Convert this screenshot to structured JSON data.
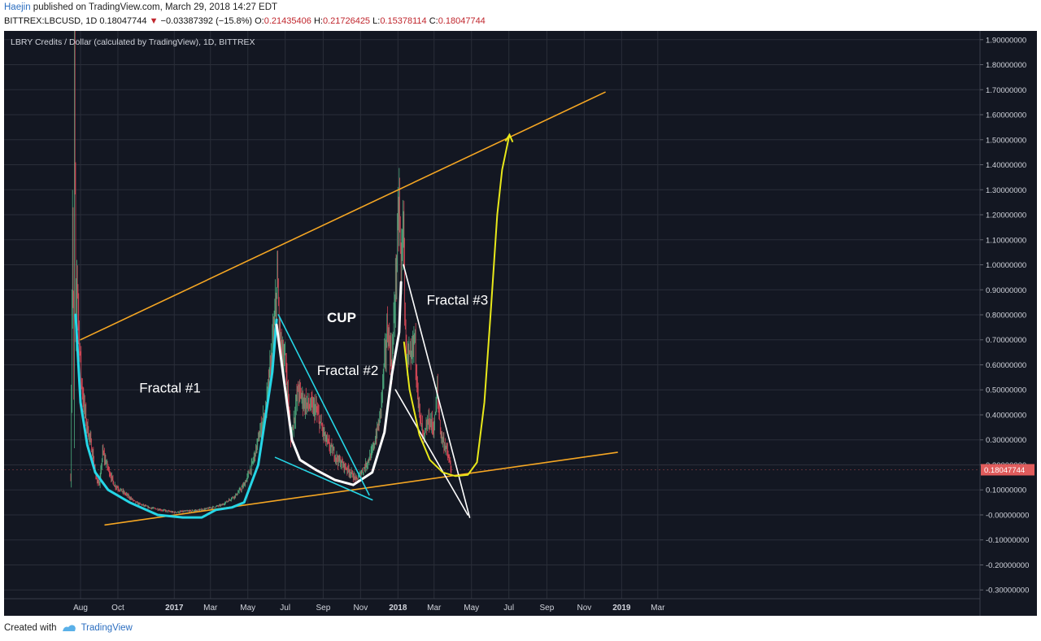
{
  "header": {
    "author": "Haejin",
    "published": " published on TradingView.com, March 29, 2018 14:27 EDT",
    "symbol_line": "BITTREX:LBCUSD, 1D",
    "last": "0.18047744",
    "change_arrow": "▼",
    "change": "−0.03387392 (−15.8%)",
    "o_label": "O:",
    "o": "0.21435406",
    "h_label": "H:",
    "h": "0.21726425",
    "l_label": "L:",
    "l": "0.15378114",
    "c_label": "C:",
    "c": "0.18047744"
  },
  "footer": {
    "created_with": "Created with",
    "brand": "TradingView"
  },
  "colors": {
    "background": "#131722",
    "grid": "#2a2e39",
    "axis_text": "#d1d4dc",
    "candle_up": "#53b987",
    "candle_down": "#eb4d5c",
    "orange": "#f5a623",
    "cyan": "#26d6e6",
    "white": "#ffffff",
    "yellow": "#e8e81a",
    "price_tag": "#e05c5c"
  },
  "chart_data": {
    "type": "candlestick",
    "title": "LBRY Credits / Dollar (calculated by TradingView), 1D, BITTREX",
    "x_ticks": [
      {
        "label": "Aug",
        "date": "2016-08-01"
      },
      {
        "label": "Oct",
        "date": "2016-10-01"
      },
      {
        "label": "2017",
        "date": "2017-01-01"
      },
      {
        "label": "Mar",
        "date": "2017-03-01"
      },
      {
        "label": "May",
        "date": "2017-05-01"
      },
      {
        "label": "Jul",
        "date": "2017-07-01"
      },
      {
        "label": "Sep",
        "date": "2017-09-01"
      },
      {
        "label": "Nov",
        "date": "2017-11-01"
      },
      {
        "label": "2018",
        "date": "2018-01-01"
      },
      {
        "label": "Mar",
        "date": "2018-03-01"
      },
      {
        "label": "May",
        "date": "2018-05-01"
      },
      {
        "label": "Jul",
        "date": "2018-07-01"
      },
      {
        "label": "Sep",
        "date": "2018-09-01"
      },
      {
        "label": "Nov",
        "date": "2018-11-01"
      },
      {
        "label": "2019",
        "date": "2019-01-01"
      },
      {
        "label": "Mar",
        "date": "2019-03-01"
      }
    ],
    "y_ticks": [
      "1.90000000",
      "1.80000000",
      "1.70000000",
      "1.60000000",
      "1.50000000",
      "1.40000000",
      "1.30000000",
      "1.20000000",
      "1.10000000",
      "1.00000000",
      "0.90000000",
      "0.80000000",
      "0.70000000",
      "0.60000000",
      "0.50000000",
      "0.40000000",
      "0.30000000",
      "0.20000000",
      "0.10000000",
      "-0.00000000",
      "-0.10000000",
      "-0.20000000",
      "-0.30000000"
    ],
    "y_tick_values": [
      1.9,
      1.8,
      1.7,
      1.6,
      1.5,
      1.4,
      1.3,
      1.2,
      1.1,
      1.0,
      0.9,
      0.8,
      0.7,
      0.6,
      0.5,
      0.4,
      0.3,
      0.2,
      0.1,
      0.0,
      -0.1,
      -0.2,
      -0.3
    ],
    "ylim": [
      -0.335,
      1.935
    ],
    "last_price_label": "0.18047744",
    "last_price": 0.18047744,
    "price_path": [
      [
        "2016-07-16",
        0.15
      ],
      [
        "2016-07-19",
        1.2
      ],
      [
        "2016-07-21",
        0.45
      ],
      [
        "2016-07-22",
        1.9
      ],
      [
        "2016-07-24",
        0.7
      ],
      [
        "2016-07-26",
        1.0
      ],
      [
        "2016-07-29",
        0.75
      ],
      [
        "2016-08-02",
        0.55
      ],
      [
        "2016-08-06",
        0.45
      ],
      [
        "2016-08-12",
        0.35
      ],
      [
        "2016-08-20",
        0.26
      ],
      [
        "2016-08-26",
        0.15
      ],
      [
        "2016-09-01",
        0.12
      ],
      [
        "2016-09-06",
        0.25
      ],
      [
        "2016-09-13",
        0.2
      ],
      [
        "2016-09-25",
        0.12
      ],
      [
        "2016-10-10",
        0.09
      ],
      [
        "2016-10-30",
        0.05
      ],
      [
        "2016-11-20",
        0.03
      ],
      [
        "2016-12-31",
        0.01
      ],
      [
        "2017-02-15",
        0.02
      ],
      [
        "2017-03-20",
        0.04
      ],
      [
        "2017-04-12",
        0.08
      ],
      [
        "2017-04-25",
        0.12
      ],
      [
        "2017-05-08",
        0.2
      ],
      [
        "2017-05-18",
        0.3
      ],
      [
        "2017-05-30",
        0.42
      ],
      [
        "2017-06-08",
        0.62
      ],
      [
        "2017-06-13",
        0.75
      ],
      [
        "2017-06-18",
        0.95
      ],
      [
        "2017-06-22",
        0.7
      ],
      [
        "2017-07-02",
        0.6
      ],
      [
        "2017-07-10",
        0.3
      ],
      [
        "2017-07-22",
        0.5
      ],
      [
        "2017-08-01",
        0.45
      ],
      [
        "2017-08-20",
        0.42
      ],
      [
        "2017-09-05",
        0.3
      ],
      [
        "2017-09-25",
        0.22
      ],
      [
        "2017-10-12",
        0.18
      ],
      [
        "2017-10-25",
        0.14
      ],
      [
        "2017-11-05",
        0.18
      ],
      [
        "2017-11-20",
        0.25
      ],
      [
        "2017-12-02",
        0.38
      ],
      [
        "2017-12-15",
        0.75
      ],
      [
        "2017-12-22",
        0.6
      ],
      [
        "2018-01-03",
        1.25
      ],
      [
        "2018-01-06",
        0.95
      ],
      [
        "2018-01-09",
        1.2
      ],
      [
        "2018-01-14",
        0.65
      ],
      [
        "2018-01-22",
        0.6
      ],
      [
        "2018-01-28",
        0.72
      ],
      [
        "2018-02-05",
        0.4
      ],
      [
        "2018-02-12",
        0.3
      ],
      [
        "2018-02-20",
        0.38
      ],
      [
        "2018-03-01",
        0.35
      ],
      [
        "2018-03-06",
        0.5
      ],
      [
        "2018-03-12",
        0.32
      ],
      [
        "2018-03-20",
        0.27
      ],
      [
        "2018-03-25",
        0.22
      ],
      [
        "2018-03-29",
        0.18
      ]
    ],
    "annotations": [
      {
        "text": "Fractal #1",
        "date": "2016-12-25",
        "price": 0.49
      },
      {
        "text": "CUP",
        "date": "2017-10-01",
        "price": 0.77
      },
      {
        "text": "Fractal #2",
        "date": "2017-10-11",
        "price": 0.56
      },
      {
        "text": "Fractal #3",
        "date": "2018-04-08",
        "price": 0.84
      }
    ],
    "drawings": [
      {
        "name": "resistance-line",
        "color": "orange",
        "points": [
          [
            "2016-08-01",
            0.7
          ],
          [
            "2018-12-05",
            1.69
          ]
        ]
      },
      {
        "name": "support-line",
        "color": "orange",
        "points": [
          [
            "2016-09-10",
            -0.04
          ],
          [
            "2018-12-25",
            0.25
          ]
        ]
      },
      {
        "name": "fractal1-cup",
        "color": "cyan",
        "points": [
          [
            "2016-07-24",
            0.8
          ],
          [
            "2016-08-01",
            0.45
          ],
          [
            "2016-08-12",
            0.28
          ],
          [
            "2016-08-25",
            0.17
          ],
          [
            "2016-09-15",
            0.1
          ],
          [
            "2016-10-20",
            0.05
          ],
          [
            "2016-12-05",
            0.0
          ],
          [
            "2017-01-15",
            -0.01
          ],
          [
            "2017-02-15",
            -0.01
          ],
          [
            "2017-03-10",
            0.02
          ],
          [
            "2017-04-05",
            0.03
          ],
          [
            "2017-04-25",
            0.05
          ],
          [
            "2017-05-18",
            0.2
          ],
          [
            "2017-06-10",
            0.57
          ],
          [
            "2017-06-17",
            0.78
          ]
        ]
      },
      {
        "name": "fractal2-cup",
        "color": "white",
        "points": [
          [
            "2017-06-17",
            0.76
          ],
          [
            "2017-07-01",
            0.5
          ],
          [
            "2017-07-12",
            0.3
          ],
          [
            "2017-07-25",
            0.22
          ],
          [
            "2017-08-20",
            0.18
          ],
          [
            "2017-09-20",
            0.14
          ],
          [
            "2017-10-20",
            0.12
          ],
          [
            "2017-11-20",
            0.17
          ],
          [
            "2017-12-10",
            0.33
          ],
          [
            "2017-12-22",
            0.56
          ],
          [
            "2018-01-03",
            0.73
          ],
          [
            "2018-01-06",
            0.93
          ]
        ]
      },
      {
        "name": "fractal2-trendline",
        "color": "cyan",
        "points": [
          [
            "2017-06-20",
            0.8
          ],
          [
            "2017-11-15",
            0.08
          ]
        ]
      },
      {
        "name": "fractal2-base",
        "color": "cyan",
        "points": [
          [
            "2017-06-15",
            0.23
          ],
          [
            "2017-11-20",
            0.06
          ]
        ]
      },
      {
        "name": "fractal3-trendline",
        "color": "white",
        "points": [
          [
            "2018-01-10",
            1.0
          ],
          [
            "2018-04-28",
            -0.01
          ]
        ]
      },
      {
        "name": "fractal3-base",
        "color": "white",
        "points": [
          [
            "2017-12-28",
            0.5
          ],
          [
            "2018-04-25",
            0.0
          ]
        ]
      },
      {
        "name": "projection",
        "color": "yellow",
        "points": [
          [
            "2018-01-11",
            0.69
          ],
          [
            "2018-01-20",
            0.5
          ],
          [
            "2018-02-05",
            0.32
          ],
          [
            "2018-02-22",
            0.22
          ],
          [
            "2018-03-15",
            0.17
          ],
          [
            "2018-04-05",
            0.155
          ],
          [
            "2018-04-25",
            0.16
          ],
          [
            "2018-05-10",
            0.21
          ],
          [
            "2018-05-22",
            0.45
          ],
          [
            "2018-06-02",
            0.83
          ],
          [
            "2018-06-12",
            1.2
          ],
          [
            "2018-06-20",
            1.38
          ],
          [
            "2018-07-02",
            1.52
          ]
        ]
      }
    ]
  }
}
